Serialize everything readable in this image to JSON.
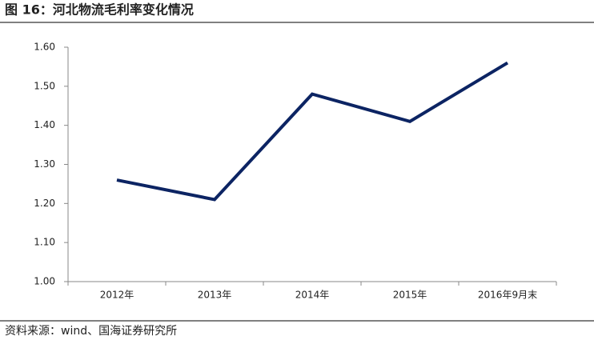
{
  "chart_data": {
    "type": "line",
    "title": "图 16：河北物流毛利率变化情况",
    "categories": [
      "2012年",
      "2013年",
      "2014年",
      "2015年",
      "2016年9月末"
    ],
    "series": [
      {
        "name": "河北物流毛利率",
        "color": "#0c2463",
        "values": [
          1.26,
          1.21,
          1.48,
          1.41,
          1.56
        ]
      }
    ],
    "ylim": [
      1.0,
      1.6
    ],
    "yticks": [
      {
        "value": 1.0,
        "label": "1.00"
      },
      {
        "value": 1.1,
        "label": "1.10"
      },
      {
        "value": 1.2,
        "label": "1.20"
      },
      {
        "value": 1.3,
        "label": "1.30"
      },
      {
        "value": 1.4,
        "label": "1.40"
      },
      {
        "value": 1.5,
        "label": "1.50"
      },
      {
        "value": 1.6,
        "label": "1.60"
      }
    ],
    "source": "资料来源：wind、国海证券研究所"
  }
}
